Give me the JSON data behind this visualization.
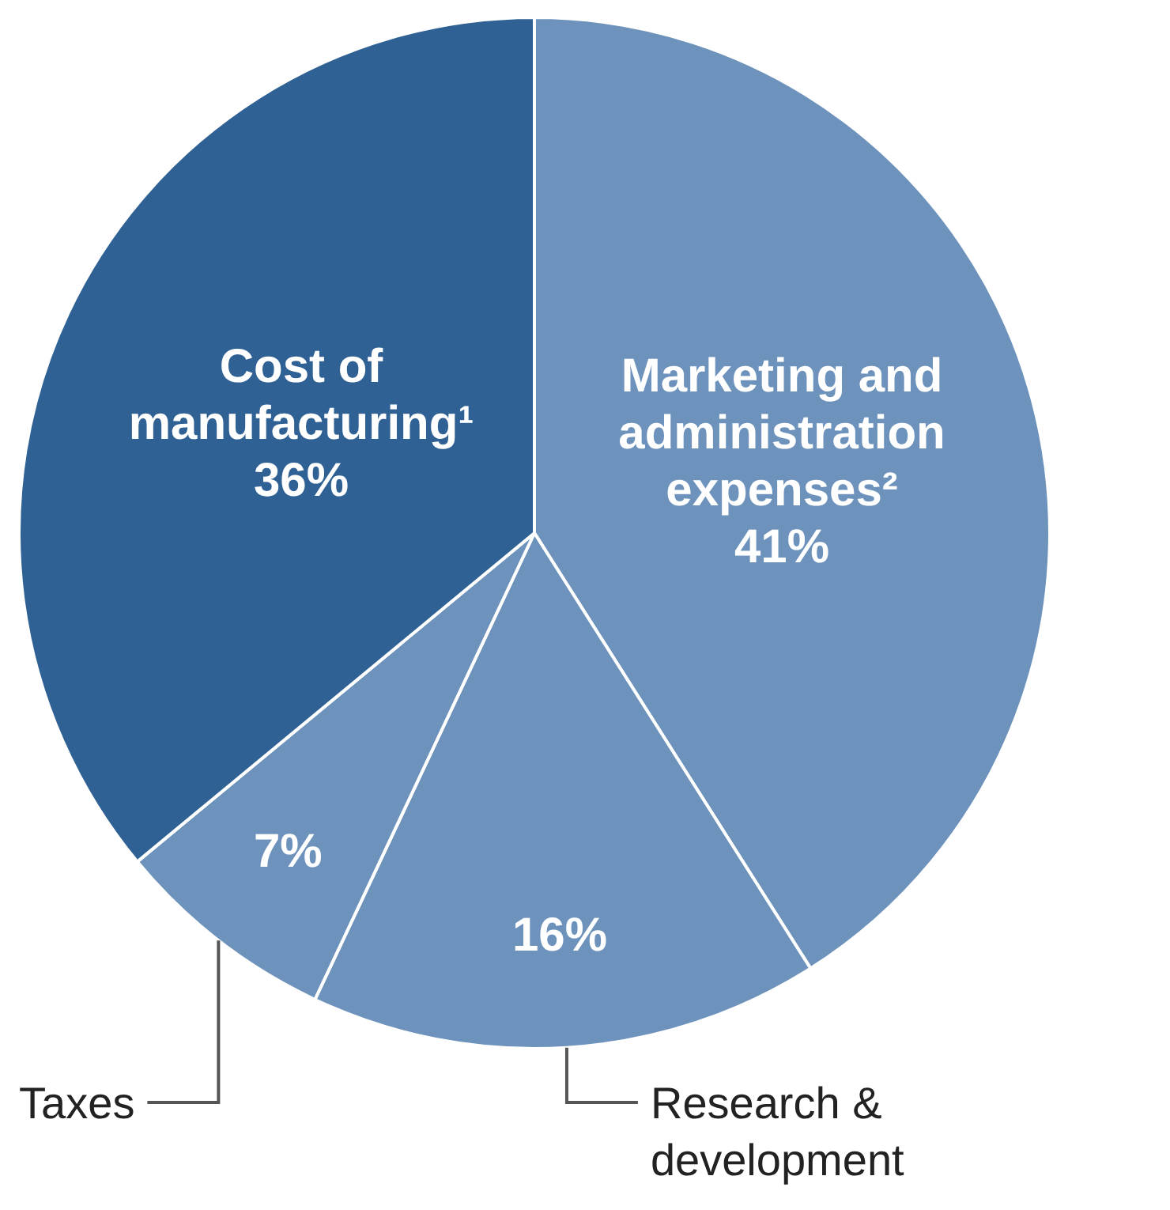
{
  "chart_data": {
    "type": "pie",
    "categories": [
      "Marketing and administration expenses²",
      "Research & development",
      "Taxes",
      "Cost of manufacturing¹"
    ],
    "values": [
      41,
      16,
      7,
      36
    ],
    "colors": [
      "#6d92bb",
      "#6d92bb",
      "#6d92bb",
      "#2f6194"
    ],
    "value_labels": [
      "41%",
      "16%",
      "7%",
      "36%"
    ]
  }
}
